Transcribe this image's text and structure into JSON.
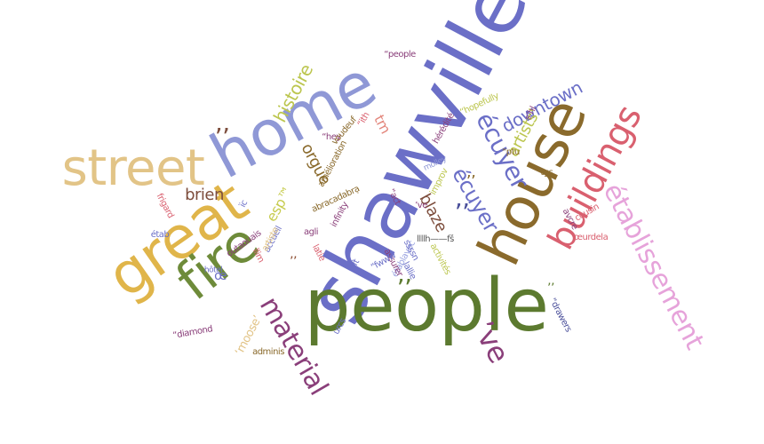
{
  "words": [
    {
      "text": "shawville",
      "color": "#6b6fc7"
    },
    {
      "text": "people",
      "color": "#5c7a2f"
    },
    {
      "text": "home",
      "color": "#8f98d6"
    },
    {
      "text": "house",
      "color": "#8a6a2c"
    },
    {
      "text": "great",
      "color": "#e0b54a"
    },
    {
      "text": "street",
      "color": "#e2c487"
    },
    {
      "text": "fire",
      "color": "#6e8b3a"
    },
    {
      "text": "buildings",
      "color": "#d9606f"
    },
    {
      "text": "établissement",
      "color": "#e6a3da"
    },
    {
      "text": "material",
      "color": "#8a3f7a"
    },
    {
      "text": "écuyer",
      "color": "#6b6fc7"
    },
    {
      "text": "écuyer",
      "color": "#6b6fc7"
    },
    {
      "text": "downtown",
      "color": "#6b6fc7"
    },
    {
      "text": "histoire",
      "color": "#bcc64f"
    },
    {
      "text": "orgue",
      "color": "#8a6a2c"
    },
    {
      "text": "brien",
      "color": "#7d4d3c"
    },
    {
      "text": "blaze",
      "color": "#7d4d3c"
    },
    {
      "text": "artists'",
      "color": "#bcc64f"
    },
    {
      "text": "esp™",
      "color": "#c7cc4f"
    },
    {
      "text": "’’",
      "color": "#7d4d3c"
    },
    {
      "text": "’’",
      "color": "#4a4f9a"
    },
    {
      "text": "’’",
      "color": "#5c7a2f"
    },
    {
      "text": "’’",
      "color": "#8a4a2c"
    },
    {
      "text": "’’",
      "color": "#8a6a2c"
    },
    {
      "text": "’’",
      "color": "#5c7a2f"
    },
    {
      "text": "’ve",
      "color": "#8a3f7a"
    },
    {
      "text": "‘moose’",
      "color": "#e2c487"
    },
    {
      "text": "œ",
      "color": "#6b6fc7"
    },
    {
      "text": "tm",
      "color": "#e3877d"
    },
    {
      "text": "abracadabrạ",
      "color": "#8a6a2c"
    },
    {
      "text": "amélioration",
      "color": "#8a6a2c"
    },
    {
      "text": "accueil",
      "color": "#6b6fc7"
    },
    {
      "text": "hôtel",
      "color": "#6b6fc7"
    },
    {
      "text": "infinity",
      "color": "#8a3f7a"
    },
    {
      "text": "agli",
      "color": "#8a3f7a"
    },
    {
      "text": "artiste",
      "color": "#e2c487"
    },
    {
      "text": "llllh——fš",
      "color": "#555555"
    },
    {
      "text": "établavec",
      "color": "#9aa3e0"
    },
    {
      "text": "assurer",
      "color": "#8a3f7a"
    },
    {
      "text": "activités",
      "color": "#bcc64f"
    },
    {
      "text": "lallie",
      "color": "#6b6fc7"
    },
    {
      "text": "improv",
      "color": "#bcc64f"
    },
    {
      "text": "molley",
      "color": "#8f98d6"
    },
    {
      "text": "hérédité",
      "color": "#8a3f7a"
    },
    {
      "text": "“people",
      "color": "#8a3f7a"
    },
    {
      "text": "“hopefully",
      "color": "#bcc64f"
    },
    {
      "text": "“ptu",
      "color": "#8a6a2c"
    },
    {
      "text": "“tgs",
      "color": "#8a6a2c"
    },
    {
      "text": "’ve",
      "color": "#8a3f7a"
    },
    {
      "text": "“hey",
      "color": "#8a3f7a"
    },
    {
      "text": "voudeuf",
      "color": "#8a6a2c"
    },
    {
      "text": "outaouais",
      "color": "#8a3f7a"
    },
    {
      "text": "adminis",
      "color": "#8a6a2c"
    },
    {
      "text": "“diamond",
      "color": "#8a3f7a"
    },
    {
      "text": "urcs",
      "color": "#6b6fc7"
    },
    {
      "text": "frigard",
      "color": "#d9606f"
    },
    {
      "text": "étab",
      "color": "#6b6fc7"
    },
    {
      "text": "avcre",
      "color": "#8a3f7a"
    },
    {
      "text": "cousin",
      "color": "#d9606f"
    },
    {
      "text": "œurdela",
      "color": "#d9606f"
    },
    {
      "text": "“drawers",
      "color": "#4a4f9a"
    },
    {
      "text": "“fwww",
      "color": "#6b6fc7"
    },
    {
      "text": "ssssn",
      "color": "#6b6fc7"
    },
    {
      "text": "“ft",
      "color": "#6b6fc7"
    },
    {
      "text": "llim",
      "color": "#d9606f"
    },
    {
      "text": "ïc",
      "color": "#6b6fc7"
    },
    {
      "text": "“ith",
      "color": "#d9606f"
    },
    {
      "text": "latie",
      "color": "#d9606f"
    },
    {
      "text": "s’hl",
      "color": "#8a3f7a"
    },
    {
      "text": "“act",
      "color": "#8a3f7a"
    }
  ]
}
